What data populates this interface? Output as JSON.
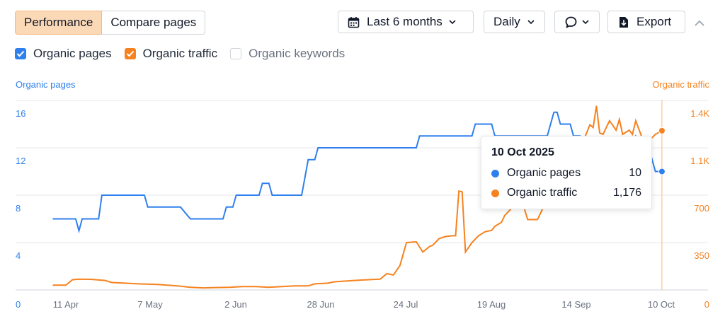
{
  "tabs": {
    "performance": "Performance",
    "compare": "Compare pages"
  },
  "toolbar": {
    "date_range": "Last 6 months",
    "granularity": "Daily",
    "export": "Export"
  },
  "legend": {
    "organic_pages": {
      "label": "Organic pages",
      "checked": true
    },
    "organic_traffic": {
      "label": "Organic traffic",
      "checked": true
    },
    "organic_keywords": {
      "label": "Organic keywords",
      "checked": false
    }
  },
  "colors": {
    "pages": "#2f80ed",
    "traffic": "#f5821f",
    "grid": "#e5e7eb"
  },
  "icons": {
    "date": "calendar-icon",
    "comment": "comment-icon",
    "export": "download-icon",
    "collapse": "chevron-up-icon"
  },
  "tooltip": {
    "date": "10 Oct 2025",
    "rows": [
      {
        "label": "Organic pages",
        "value": "10"
      },
      {
        "label": "Organic traffic",
        "value": "1,176"
      }
    ]
  },
  "chart_data": {
    "type": "line",
    "title": "",
    "ylabel_left": "Organic pages",
    "ylabel_right": "Organic traffic",
    "xlabel": "",
    "x_tick_labels": [
      "11 Apr",
      "7 May",
      "2 Jun",
      "28 Jun",
      "24 Jul",
      "19 Aug",
      "14 Sep",
      "10 Oct"
    ],
    "x_ticks_day": [
      0,
      26,
      52,
      78,
      104,
      130,
      156,
      182
    ],
    "y_left_ticks": [
      "0",
      "4",
      "8",
      "12",
      "16"
    ],
    "y_right_ticks": [
      "0",
      "350",
      "700",
      "1.1K",
      "1.4K"
    ],
    "ylim_left": [
      0,
      16
    ],
    "ylim_right": [
      0,
      1400
    ],
    "grid": true,
    "series": [
      {
        "name": "Organic pages",
        "axis": "left",
        "color": "#2f80ed",
        "points": [
          [
            -4,
            6
          ],
          [
            0,
            6
          ],
          [
            3,
            6
          ],
          [
            4,
            5
          ],
          [
            5,
            6
          ],
          [
            6,
            6
          ],
          [
            10,
            6
          ],
          [
            11,
            8
          ],
          [
            24,
            8
          ],
          [
            25,
            7
          ],
          [
            35,
            7
          ],
          [
            38,
            6
          ],
          [
            48,
            6
          ],
          [
            49,
            7
          ],
          [
            51,
            7
          ],
          [
            52,
            8
          ],
          [
            59,
            8
          ],
          [
            60,
            9
          ],
          [
            62,
            9
          ],
          [
            63,
            8
          ],
          [
            72,
            8
          ],
          [
            74,
            11
          ],
          [
            76,
            11
          ],
          [
            77,
            12
          ],
          [
            107,
            12
          ],
          [
            108,
            13
          ],
          [
            124,
            13
          ],
          [
            125,
            14
          ],
          [
            130,
            14
          ],
          [
            131,
            13
          ],
          [
            147,
            13
          ],
          [
            149,
            15
          ],
          [
            150,
            15
          ],
          [
            151,
            14
          ],
          [
            154,
            14
          ],
          [
            155,
            13
          ],
          [
            157,
            13
          ],
          [
            158,
            12
          ],
          [
            168,
            12
          ],
          [
            172,
            11
          ],
          [
            174,
            13
          ],
          [
            178,
            12
          ],
          [
            180,
            10
          ],
          [
            182,
            10
          ]
        ]
      },
      {
        "name": "Organic traffic",
        "axis": "right",
        "color": "#f5821f",
        "points": [
          [
            -4,
            35
          ],
          [
            0,
            35
          ],
          [
            2,
            75
          ],
          [
            4,
            80
          ],
          [
            8,
            78
          ],
          [
            12,
            70
          ],
          [
            14,
            55
          ],
          [
            18,
            50
          ],
          [
            22,
            45
          ],
          [
            28,
            40
          ],
          [
            34,
            30
          ],
          [
            38,
            20
          ],
          [
            42,
            15
          ],
          [
            46,
            18
          ],
          [
            50,
            20
          ],
          [
            54,
            25
          ],
          [
            58,
            25
          ],
          [
            62,
            20
          ],
          [
            66,
            25
          ],
          [
            70,
            30
          ],
          [
            74,
            30
          ],
          [
            76,
            45
          ],
          [
            80,
            50
          ],
          [
            82,
            60
          ],
          [
            88,
            70
          ],
          [
            92,
            75
          ],
          [
            96,
            80
          ],
          [
            98,
            120
          ],
          [
            100,
            110
          ],
          [
            102,
            180
          ],
          [
            104,
            350
          ],
          [
            107,
            355
          ],
          [
            109,
            280
          ],
          [
            111,
            320
          ],
          [
            112,
            330
          ],
          [
            114,
            380
          ],
          [
            116,
            395
          ],
          [
            118,
            400
          ],
          [
            119,
            400
          ],
          [
            120,
            730
          ],
          [
            121,
            725
          ],
          [
            122,
            280
          ],
          [
            124,
            350
          ],
          [
            126,
            400
          ],
          [
            128,
            430
          ],
          [
            130,
            440
          ],
          [
            131,
            470
          ],
          [
            133,
            500
          ],
          [
            134,
            550
          ],
          [
            136,
            600
          ],
          [
            137,
            610
          ],
          [
            140,
            600
          ],
          [
            141,
            520
          ],
          [
            144,
            520
          ],
          [
            146,
            620
          ],
          [
            148,
            640
          ],
          [
            150,
            700
          ],
          [
            152,
            840
          ],
          [
            153,
            980
          ],
          [
            154,
            920
          ],
          [
            156,
            1020
          ],
          [
            157,
            1050
          ],
          [
            158,
            1100
          ],
          [
            160,
            1220
          ],
          [
            161,
            1200
          ],
          [
            162,
            1360
          ],
          [
            163,
            1160
          ],
          [
            164,
            1150
          ],
          [
            166,
            1250
          ],
          [
            168,
            1180
          ],
          [
            169,
            1260
          ],
          [
            170,
            1150
          ],
          [
            172,
            1180
          ],
          [
            173,
            1150
          ],
          [
            174,
            1250
          ],
          [
            176,
            1120
          ],
          [
            178,
            1100
          ],
          [
            180,
            1150
          ],
          [
            182,
            1176
          ]
        ]
      }
    ],
    "highlight_day": 182
  }
}
